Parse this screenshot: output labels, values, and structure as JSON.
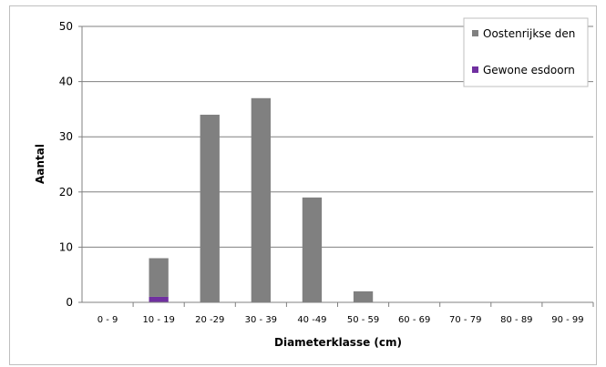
{
  "chart_data": {
    "type": "bar",
    "stacked": true,
    "categories": [
      "0 - 9",
      "10 - 19",
      "20 -29",
      "30 - 39",
      "40 -49",
      "50 - 59",
      "60 - 69",
      "70 - 79",
      "80 - 89",
      "90 - 99"
    ],
    "series": [
      {
        "name": "Oostenrijkse den",
        "color": "#808080",
        "values": [
          0,
          7,
          34,
          37,
          19,
          2,
          0,
          0,
          0,
          0
        ]
      },
      {
        "name": "Gewone esdoorn",
        "color": "#7030a0",
        "values": [
          0,
          1,
          0,
          0,
          0,
          0,
          0,
          0,
          0,
          0
        ]
      }
    ],
    "xlabel": "Diameterklasse (cm)",
    "ylabel": "Aantal",
    "ylim": [
      0,
      50
    ],
    "yticks": [
      0,
      10,
      20,
      30,
      40,
      50
    ],
    "grid": true,
    "legend": "top-right"
  }
}
